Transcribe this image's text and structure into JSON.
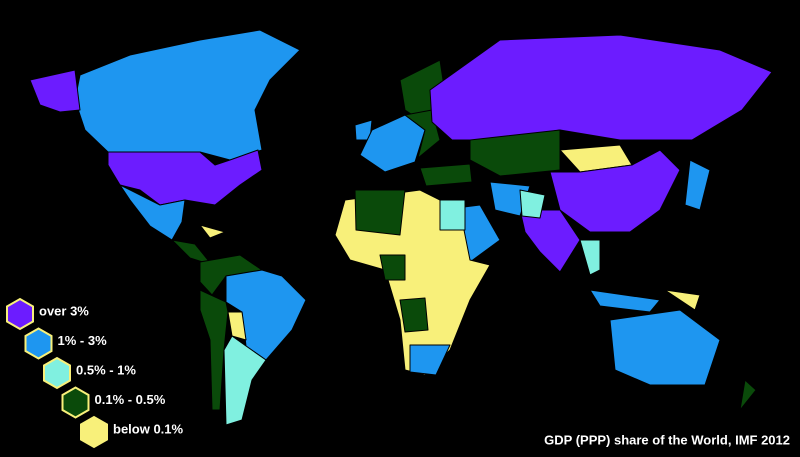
{
  "title": "GDP (PPP) share of the World, IMF 2012",
  "legend": [
    {
      "label": "over 3%",
      "color": "#6c1cff"
    },
    {
      "label": "1% - 3%",
      "color": "#1e96f0"
    },
    {
      "label": "0.5% - 1%",
      "color": "#80f0e0"
    },
    {
      "label": "0.1% - 0.5%",
      "color": "#0a4a0a"
    },
    {
      "label": "below 0.1%",
      "color": "#f8f07a"
    }
  ]
}
